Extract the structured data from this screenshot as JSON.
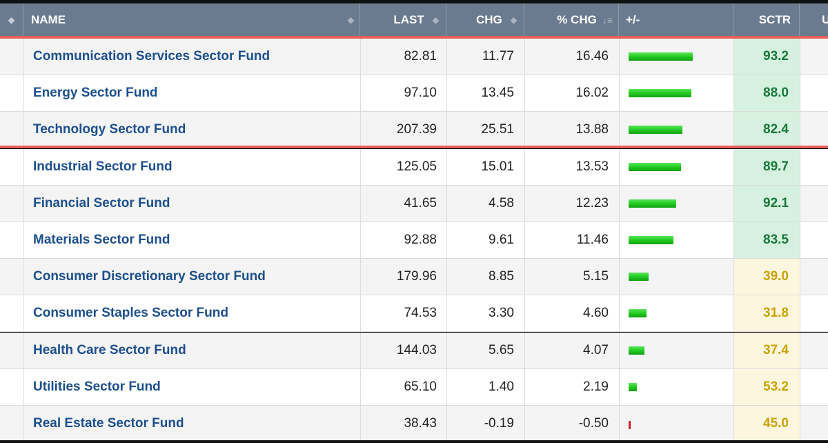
{
  "header": {
    "name": "NAME",
    "last": "LAST",
    "chg": "CHG",
    "pct_chg": "% CHG",
    "plusminus": "+/-",
    "sctr": "SCTR",
    "extra": "U"
  },
  "icons": {
    "sort": "sort-updown-icon",
    "sort_desc": "sort-descending-icon"
  },
  "colors": {
    "header_bg": "#6b7b8f",
    "link": "#1c4f8c",
    "up_bar": "#22cc22",
    "down_bar": "#cc2222",
    "highlight_line": "#e66058",
    "sctr_high_bg": "#d6f1df",
    "sctr_high_text": "#167a3a",
    "sctr_mid_bg": "#fdf6de",
    "sctr_mid_text": "#c9a300"
  },
  "rows": [
    {
      "name": "Communication Services Sector Fund",
      "last": "82.81",
      "chg": "11.77",
      "pct": "16.46",
      "pct_value": 16.46,
      "sctr": "93.2",
      "tier": "high"
    },
    {
      "name": "Energy Sector Fund",
      "last": "97.10",
      "chg": "13.45",
      "pct": "16.02",
      "pct_value": 16.02,
      "sctr": "88.0",
      "tier": "high"
    },
    {
      "name": "Technology Sector Fund",
      "last": "207.39",
      "chg": "25.51",
      "pct": "13.88",
      "pct_value": 13.88,
      "sctr": "82.4",
      "tier": "high"
    },
    {
      "name": "Industrial Sector Fund",
      "last": "125.05",
      "chg": "15.01",
      "pct": "13.53",
      "pct_value": 13.53,
      "sctr": "89.7",
      "tier": "high"
    },
    {
      "name": "Financial Sector Fund",
      "last": "41.65",
      "chg": "4.58",
      "pct": "12.23",
      "pct_value": 12.23,
      "sctr": "92.1",
      "tier": "high"
    },
    {
      "name": "Materials Sector Fund",
      "last": "92.88",
      "chg": "9.61",
      "pct": "11.46",
      "pct_value": 11.46,
      "sctr": "83.5",
      "tier": "high"
    },
    {
      "name": "Consumer Discretionary Sector Fund",
      "last": "179.96",
      "chg": "8.85",
      "pct": "5.15",
      "pct_value": 5.15,
      "sctr": "39.0",
      "tier": "mid"
    },
    {
      "name": "Consumer Staples Sector Fund",
      "last": "74.53",
      "chg": "3.30",
      "pct": "4.60",
      "pct_value": 4.6,
      "sctr": "31.8",
      "tier": "mid"
    },
    {
      "name": "Health Care Sector Fund",
      "last": "144.03",
      "chg": "5.65",
      "pct": "4.07",
      "pct_value": 4.07,
      "sctr": "37.4",
      "tier": "mid"
    },
    {
      "name": "Utilities Sector Fund",
      "last": "65.10",
      "chg": "1.40",
      "pct": "2.19",
      "pct_value": 2.19,
      "sctr": "53.2",
      "tier": "mid"
    },
    {
      "name": "Real Estate Sector Fund",
      "last": "38.43",
      "chg": "-0.19",
      "pct": "-0.50",
      "pct_value": -0.5,
      "sctr": "45.0",
      "tier": "mid"
    }
  ]
}
